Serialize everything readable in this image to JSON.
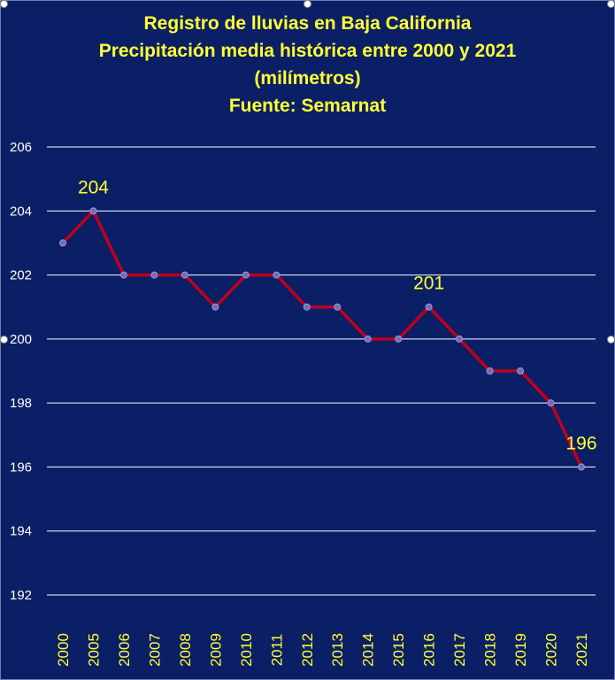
{
  "title_lines": [
    "Registro de lluvias en Baja California",
    "Precipitación media histórica  entre 2000 y 2021",
    "(milímetros)",
    "Fuente: Semarnat"
  ],
  "chart_data": {
    "type": "line",
    "title": "Registro de lluvias en Baja California / Precipitación media histórica  entre 2000 y 2021 / (milímetros) / Fuente: Semarnat",
    "xlabel": "",
    "ylabel": "",
    "categories": [
      "2000",
      "2005",
      "2006",
      "2007",
      "2008",
      "2009",
      "2010",
      "2011",
      "2012",
      "2013",
      "2014",
      "2015",
      "2016",
      "2017",
      "2018",
      "2019",
      "2020",
      "2021"
    ],
    "series": [
      {
        "values": [
          203,
          204,
          202,
          202,
          202,
          201,
          202,
          202,
          201,
          201,
          200,
          200,
          201,
          200,
          199,
          199,
          198,
          196
        ]
      }
    ],
    "ylim": [
      192,
      206
    ],
    "yticks": [
      192,
      194,
      196,
      198,
      200,
      202,
      204,
      206
    ],
    "ytick_labels": [
      "192",
      "194",
      "196",
      "198",
      "200",
      "202",
      "204",
      "206"
    ],
    "data_labels": [
      {
        "index": 1,
        "text": "204"
      },
      {
        "index": 12,
        "text": "201"
      },
      {
        "index": 17,
        "text": "196"
      }
    ],
    "grid": true,
    "legend": "none",
    "colors": {
      "background": "#0b1f66",
      "line": "#c0001a",
      "marker": "#6f6fb8",
      "title": "#ffff33",
      "grid": "#ffffff"
    }
  }
}
